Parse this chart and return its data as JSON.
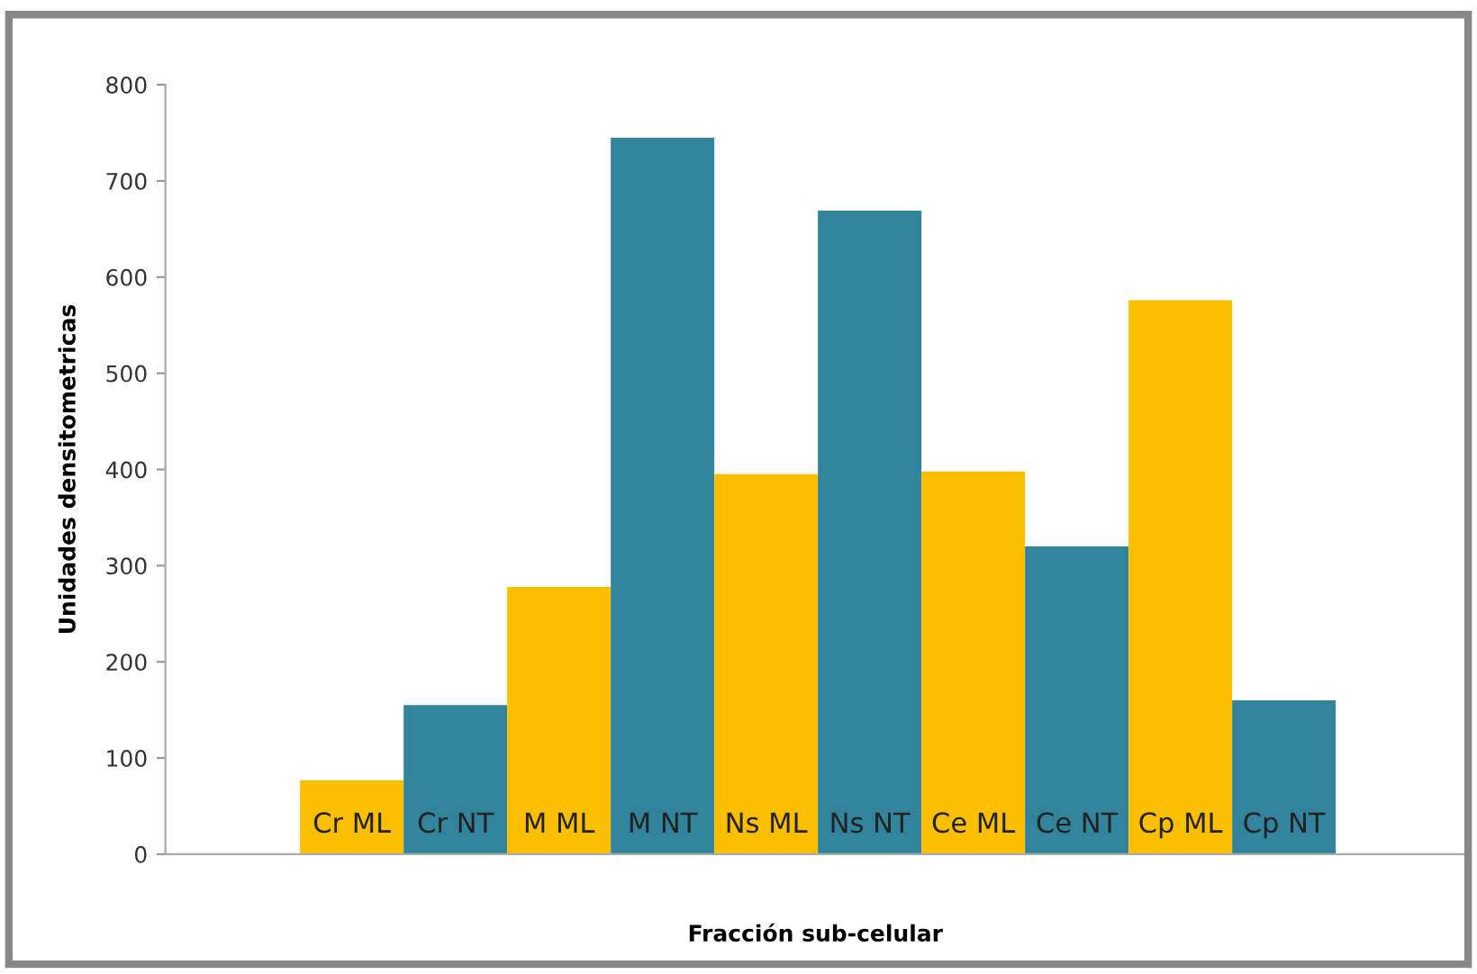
{
  "chart_data": {
    "type": "bar",
    "xlabel": "Fracción sub-celular",
    "ylabel": "Unidades densitometricas",
    "categories": [
      "Cr ML",
      "Cr NT",
      "M ML",
      "M NT",
      "Ns ML",
      "Ns NT",
      "Ce ML",
      "Ce NT",
      "Cp ML",
      "Cp NT"
    ],
    "values": [
      77,
      155,
      278,
      745,
      395,
      669,
      398,
      320,
      576,
      160
    ],
    "colors": [
      "#fbbf00",
      "#31849b",
      "#fbbf00",
      "#31849b",
      "#fbbf00",
      "#31849b",
      "#fbbf00",
      "#31849b",
      "#fbbf00",
      "#31849b"
    ],
    "ylim": [
      0,
      800
    ],
    "yticks": [
      0,
      100,
      200,
      300,
      400,
      500,
      600,
      700,
      800
    ],
    "grid": false,
    "legend": false
  }
}
